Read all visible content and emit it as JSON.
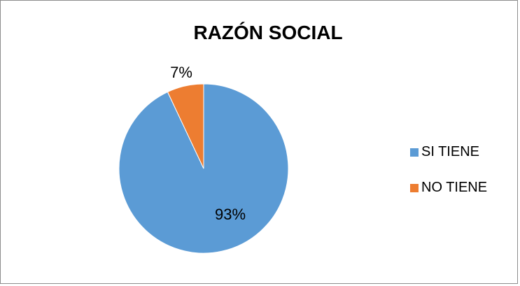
{
  "chart_data": {
    "type": "pie",
    "title": "RAZÓN SOCIAL",
    "categories": [
      "SI TIENE",
      "NO TIENE"
    ],
    "values": [
      93,
      7
    ],
    "data_labels": [
      "93%",
      "7%"
    ],
    "colors": [
      "#5b9bd5",
      "#ed7d31"
    ],
    "legend_position": "right"
  }
}
